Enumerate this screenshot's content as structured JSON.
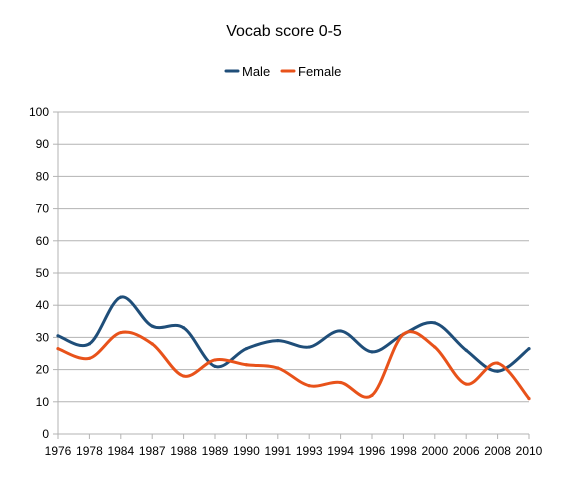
{
  "chart_data": {
    "type": "line",
    "title": "Vocab score 0-5",
    "xlabel": "",
    "ylabel": "",
    "categories": [
      "1976",
      "1978",
      "1984",
      "1987",
      "1988",
      "1989",
      "1990",
      "1991",
      "1993",
      "1994",
      "1996",
      "1998",
      "2000",
      "2006",
      "2008",
      "2010"
    ],
    "ylim": [
      0,
      100
    ],
    "yticks": [
      0,
      10,
      20,
      30,
      40,
      50,
      60,
      70,
      80,
      90,
      100
    ],
    "grid": true,
    "legend": "top",
    "smooth": true,
    "series": [
      {
        "name": "Male",
        "color": "#1f4e79",
        "values": [
          30.5,
          28,
          42.5,
          33.5,
          33,
          21,
          26.5,
          29,
          27,
          32,
          25.5,
          31,
          34.5,
          26,
          19.5,
          26.5
        ]
      },
      {
        "name": "Female",
        "color": "#e8521a",
        "values": [
          26.5,
          23.5,
          31.5,
          28,
          18,
          23,
          21.5,
          20.5,
          15,
          16,
          12,
          31,
          27,
          15.5,
          22,
          11
        ]
      }
    ]
  }
}
